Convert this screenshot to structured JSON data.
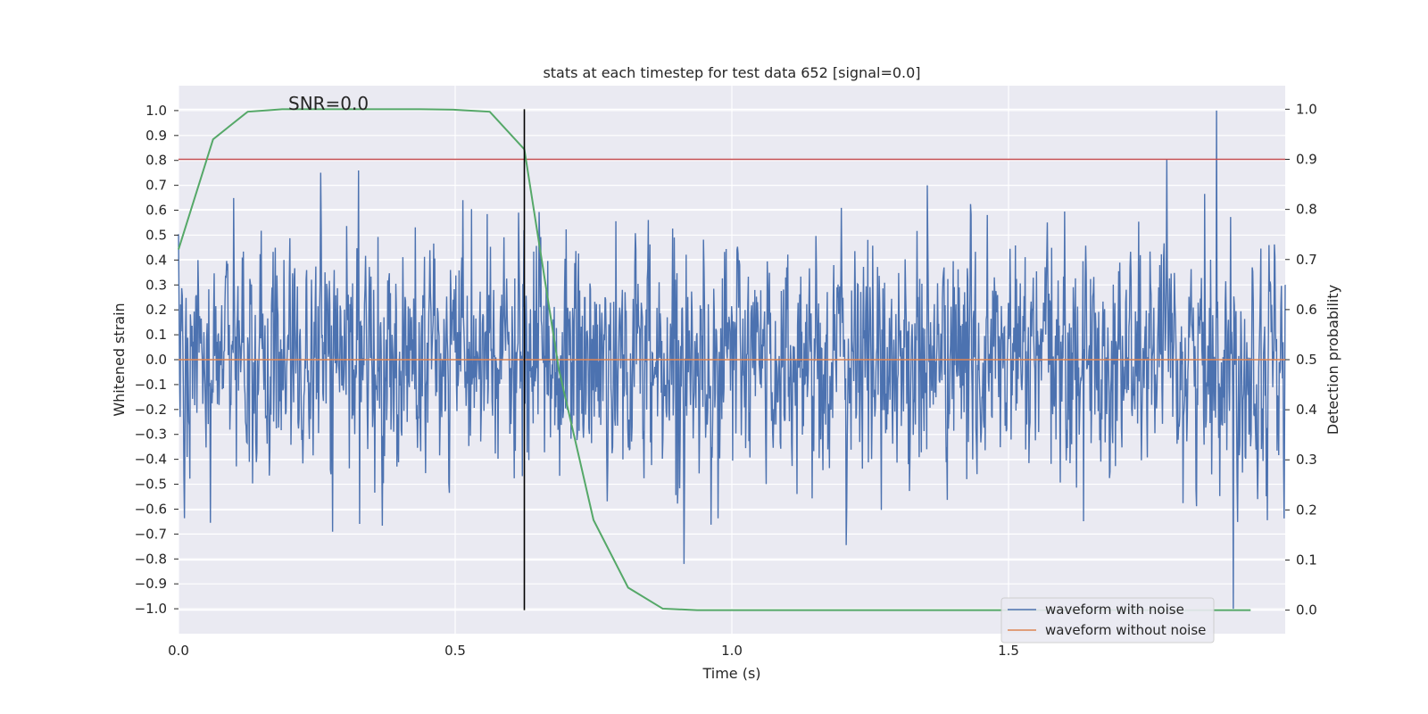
{
  "chart_data": {
    "type": "line",
    "title": "stats at each timestep for test data 652 [signal=0.0]",
    "xlabel": "Time (s)",
    "ylabel": "Whitened strain",
    "y2label": "Detection probability",
    "xlim": [
      0.0,
      2.0
    ],
    "ylim": [
      -1.1,
      1.1
    ],
    "y2lim": [
      -0.047,
      1.047
    ],
    "xticks": [
      "0.0",
      "0.5",
      "1.0",
      "1.5"
    ],
    "yticks": [
      "1.0",
      "0.9",
      "0.8",
      "0.7",
      "0.6",
      "0.5",
      "0.4",
      "0.3",
      "0.2",
      "0.1",
      "0.0",
      "−0.1",
      "−0.2",
      "−0.3",
      "−0.4",
      "−0.5",
      "−0.6",
      "−0.7",
      "−0.8",
      "−0.9",
      "−1.0"
    ],
    "y2ticks": [
      "1.0",
      "0.9",
      "0.8",
      "0.7",
      "0.6",
      "0.5",
      "0.4",
      "0.3",
      "0.2",
      "0.1",
      "0.0"
    ],
    "grid": true,
    "legend_position": "lower-right",
    "annotation": "SNR=0.0",
    "vline_x": 0.625,
    "hline_y2": 0.9,
    "series": [
      {
        "name": "waveform with noise",
        "color": "#4c72b0",
        "axis": "left",
        "x_range": [
          0.0,
          2.0
        ],
        "n_samples": 2048,
        "amplitude_max": 1.0,
        "amplitude_min": -1.0
      },
      {
        "name": "waveform without noise",
        "color": "#dd8452",
        "axis": "left",
        "x": [
          0.0,
          2.0
        ],
        "y": [
          0.0,
          0.0
        ]
      },
      {
        "name": "detection probability",
        "color": "#55a868",
        "axis": "right",
        "x": [
          0.0,
          0.0625,
          0.125,
          0.1875,
          0.25,
          0.3125,
          0.375,
          0.4375,
          0.5,
          0.5625,
          0.625,
          0.6875,
          0.75,
          0.8125,
          0.875,
          0.9375,
          1.0,
          1.0625,
          1.125,
          1.1875,
          1.25,
          1.3125,
          1.375,
          1.4375,
          1.5,
          1.5625,
          1.625,
          1.6875,
          1.75,
          1.8125,
          1.875,
          1.9375
        ],
        "y": [
          0.72,
          0.94,
          0.995,
          1.0,
          1.0,
          1.0,
          1.0,
          1.0,
          0.999,
          0.995,
          0.92,
          0.48,
          0.18,
          0.045,
          0.003,
          0.0,
          0.0,
          0.0,
          0.0,
          0.0,
          0.0,
          0.0,
          0.0,
          0.0,
          0.0,
          0.0,
          0.0,
          0.0,
          0.0,
          0.0,
          0.0,
          0.0
        ]
      }
    ],
    "threshold_color": "#c44e52",
    "vline_color": "#000000"
  }
}
